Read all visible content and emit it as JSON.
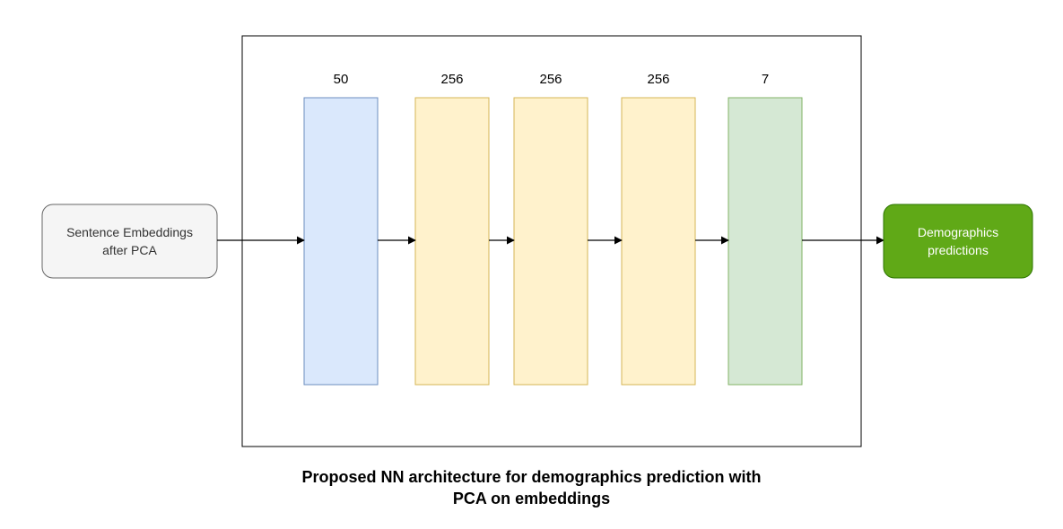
{
  "input_node": {
    "line1": "Sentence Embeddings",
    "line2": "after PCA",
    "fill": "#f5f5f5",
    "stroke": "#666666"
  },
  "output_node": {
    "line1": "Demographics",
    "line2": "predictions",
    "fill": "#60a917",
    "stroke": "#2d7600",
    "text_color": "#ffffff"
  },
  "layers": [
    {
      "units": "50",
      "fill": "#dae8fc",
      "stroke": "#6c8ebf"
    },
    {
      "units": "256",
      "fill": "#fff2cc",
      "stroke": "#d6b656"
    },
    {
      "units": "256",
      "fill": "#fff2cc",
      "stroke": "#d6b656"
    },
    {
      "units": "256",
      "fill": "#fff2cc",
      "stroke": "#d6b656"
    },
    {
      "units": "7",
      "fill": "#d5e8d4",
      "stroke": "#82b366"
    }
  ],
  "caption": {
    "line1": "Proposed NN architecture for demographics prediction with",
    "line2": "PCA on embeddings"
  }
}
